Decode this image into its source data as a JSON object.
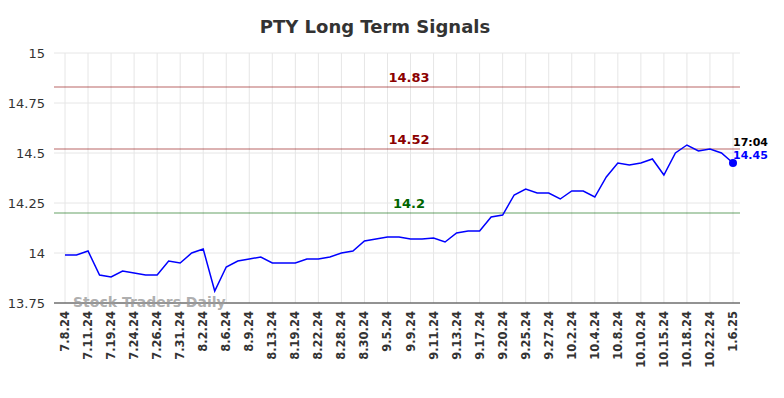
{
  "chart_data": {
    "type": "line",
    "title": "PTY Long Term Signals",
    "categories": [
      "7.8.24",
      null,
      "7.11.24",
      null,
      "7.19.24",
      null,
      "7.24.24",
      null,
      "7.26.24",
      null,
      "7.31.24",
      null,
      "8.2.24",
      null,
      "8.6.24",
      null,
      "8.9.24",
      null,
      "8.13.24",
      null,
      "8.19.24",
      null,
      "8.22.24",
      null,
      "8.28.24",
      null,
      "8.30.24",
      null,
      "9.5.24",
      null,
      "9.9.24",
      null,
      "9.11.24",
      null,
      "9.13.24",
      null,
      "9.17.24",
      null,
      "9.20.24",
      null,
      "9.25.24",
      null,
      "9.27.24",
      null,
      "10.2.24",
      null,
      "10.4.24",
      null,
      "10.8.24",
      null,
      "10.10.24",
      null,
      "10.15.24",
      null,
      "10.18.24",
      null,
      "10.22.24",
      null,
      "1.6.25"
    ],
    "values": [
      13.99,
      13.99,
      14.01,
      13.89,
      13.88,
      13.91,
      13.9,
      13.89,
      13.89,
      13.96,
      13.95,
      14.0,
      14.02,
      13.81,
      13.93,
      13.96,
      13.97,
      13.98,
      13.95,
      13.95,
      13.95,
      13.97,
      13.97,
      13.98,
      14.0,
      14.01,
      14.06,
      14.07,
      14.08,
      14.08,
      14.07,
      14.07,
      14.075,
      14.055,
      14.1,
      14.11,
      14.11,
      14.18,
      14.19,
      14.29,
      14.32,
      14.3,
      14.3,
      14.27,
      14.31,
      14.31,
      14.28,
      14.38,
      14.45,
      14.44,
      14.45,
      14.47,
      14.39,
      14.5,
      14.54,
      14.51,
      14.52,
      14.5,
      14.45
    ],
    "color": "#0000ff",
    "ylim": [
      13.75,
      15
    ],
    "yticks": [
      13.75,
      14,
      14.25,
      14.5,
      14.75,
      15
    ],
    "grid": true,
    "annotations": [
      {
        "value": 14.83,
        "label": "14.83",
        "color": "#8b0000"
      },
      {
        "value": 14.52,
        "label": "14.52",
        "color": "#8b0000"
      },
      {
        "value": 14.2,
        "label": "14.2",
        "color": "#006400"
      }
    ],
    "last_point": {
      "time_label": "17:04",
      "value_label": "14.45"
    },
    "watermark": "Stock Traders Daily"
  }
}
